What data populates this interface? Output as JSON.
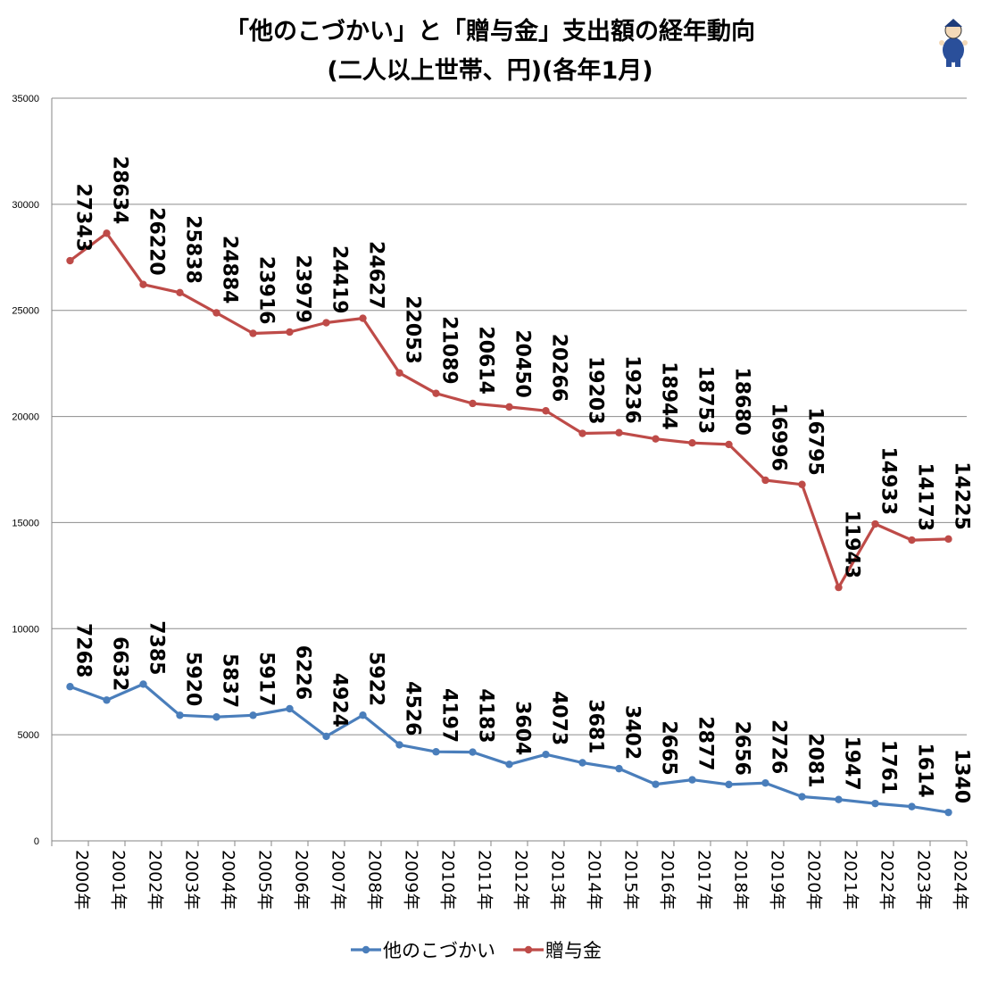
{
  "chart_data": {
    "type": "line",
    "title_lines": [
      "「他のこづかい」と「贈与金」支出額の経年動向",
      "(二人以上世帯、円)(各年1月)"
    ],
    "xlabel": "",
    "ylabel": "",
    "ylim": [
      0,
      35000
    ],
    "yticks": [
      0,
      5000,
      10000,
      15000,
      20000,
      25000,
      30000,
      35000
    ],
    "grid": true,
    "legend_position": "bottom",
    "categories": [
      "2000年",
      "2001年",
      "2002年",
      "2003年",
      "2004年",
      "2005年",
      "2006年",
      "2007年",
      "2008年",
      "2009年",
      "2010年",
      "2011年",
      "2012年",
      "2013年",
      "2014年",
      "2015年",
      "2016年",
      "2017年",
      "2018年",
      "2019年",
      "2020年",
      "2021年",
      "2022年",
      "2023年",
      "2024年"
    ],
    "series": [
      {
        "name": "他のこづかい",
        "color": "#4A7EBB",
        "values": [
          7268,
          6632,
          7385,
          5920,
          5837,
          5917,
          6226,
          4924,
          5922,
          4526,
          4197,
          4183,
          3604,
          4073,
          3681,
          3402,
          2665,
          2877,
          2656,
          2726,
          2081,
          1947,
          1761,
          1614,
          1340
        ]
      },
      {
        "name": "贈与金",
        "color": "#BE4B48",
        "values": [
          27343,
          28634,
          26220,
          25838,
          24884,
          23916,
          23979,
          24419,
          24627,
          22053,
          21089,
          20614,
          20450,
          20266,
          19203,
          19236,
          18944,
          18753,
          18680,
          16996,
          16795,
          11943,
          14933,
          14173,
          14225
        ]
      }
    ]
  }
}
